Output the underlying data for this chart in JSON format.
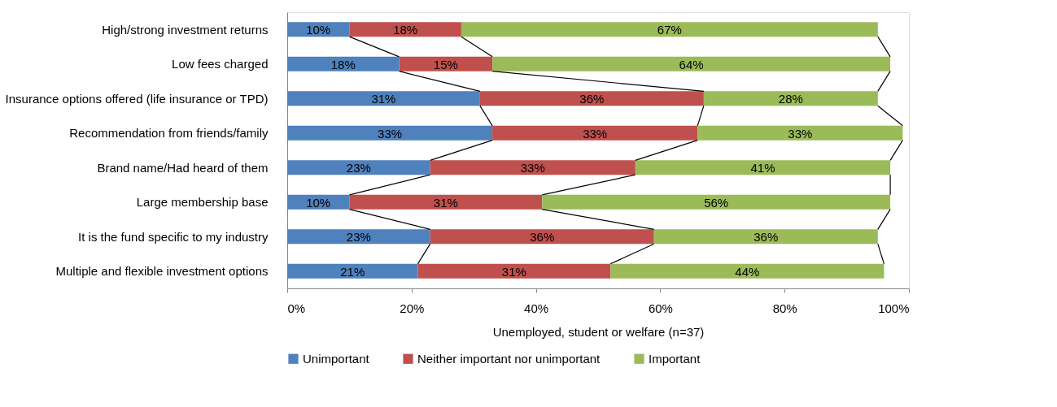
{
  "chart_data": {
    "type": "bar",
    "orientation": "horizontal",
    "stacked": true,
    "categories": [
      "High/strong investment  returns",
      "Low fees charged",
      "Insurance options offered (life insurance or TPD)",
      "Recommendation from friends/family",
      "Brand name/Had  heard of them",
      "Large membership base",
      "It is the fund specific to my industry",
      "Multiple and flexible investment  options"
    ],
    "series": [
      {
        "name": "Unimportant",
        "color": "#4f81bd",
        "values": [
          10,
          18,
          31,
          33,
          23,
          10,
          23,
          21
        ],
        "value_labels": [
          "10%",
          "18%",
          "31%",
          "33%",
          "23%",
          "10%",
          "23%",
          "21%"
        ]
      },
      {
        "name": "Neither important nor unimportant",
        "color": "#c0504d",
        "values": [
          18,
          15,
          36,
          33,
          33,
          31,
          36,
          31
        ],
        "value_labels": [
          "18%",
          "15%",
          "36%",
          "33%",
          "33%",
          "31%",
          "36%",
          "31%"
        ]
      },
      {
        "name": "Important",
        "color": "#9bbb59",
        "values": [
          67,
          64,
          28,
          33,
          41,
          56,
          36,
          44
        ],
        "value_labels": [
          "67%",
          "64%",
          "28%",
          "33%",
          "41%",
          "56%",
          "36%",
          "44%"
        ]
      }
    ],
    "xlabel": "Unemployed, student or welfare (n=37)",
    "xlim": [
      0,
      100
    ],
    "xticks": [
      {
        "value": 0,
        "label": "0%"
      },
      {
        "value": 20,
        "label": "20%"
      },
      {
        "value": 40,
        "label": "40%"
      },
      {
        "value": 60,
        "label": "60%"
      },
      {
        "value": 80,
        "label": "80%"
      },
      {
        "value": 100,
        "label": "100%"
      }
    ],
    "grid": false,
    "legend": "bottom"
  }
}
